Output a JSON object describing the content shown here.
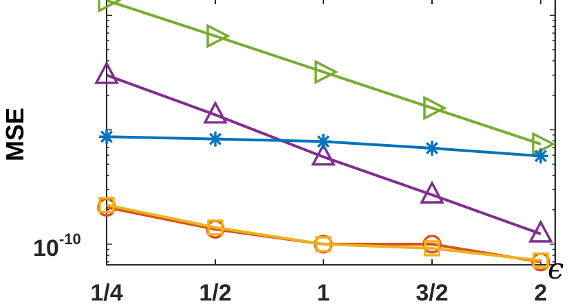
{
  "chart_data": {
    "type": "line",
    "title": "",
    "xlabel": "ϵ",
    "ylabel": "MSE",
    "y_scale": "log",
    "ylim": [
      6.6e-11,
      1.4e-08
    ],
    "x": [
      0.25,
      0.5,
      1,
      1.5,
      2
    ],
    "x_tick_labels": [
      "1/4",
      "1/2",
      "1",
      "3/2",
      "2"
    ],
    "y_ticks": [
      {
        "value": 1e-10,
        "base": "10",
        "exponent": "-10"
      }
    ],
    "grid": false,
    "legend": "none",
    "series": [
      {
        "values": [
          1.35e-08,
          6.6e-09,
          3.2e-09,
          1.55e-09,
          7.5e-10
        ],
        "color": "#77ac30",
        "marker": "triangle-right"
      },
      {
        "values": [
          3e-09,
          1.35e-09,
          5.8e-10,
          2.7e-10,
          1.23e-10
        ],
        "color": "#7e2f8e",
        "marker": "triangle-up"
      },
      {
        "values": [
          8.7e-10,
          8.3e-10,
          7.9e-10,
          6.9e-10,
          5.9e-10
        ],
        "color": "#0072bd",
        "marker": "asterisk"
      },
      {
        "values": [
          2.1e-10,
          1.35e-10,
          1e-10,
          1e-10,
          7e-11
        ],
        "color": "#d95319",
        "marker": "circle"
      },
      {
        "values": [
          2.2e-10,
          1.4e-10,
          1e-10,
          9.2e-11,
          7.2e-11
        ],
        "color": "#edb120",
        "marker": "square"
      }
    ]
  }
}
